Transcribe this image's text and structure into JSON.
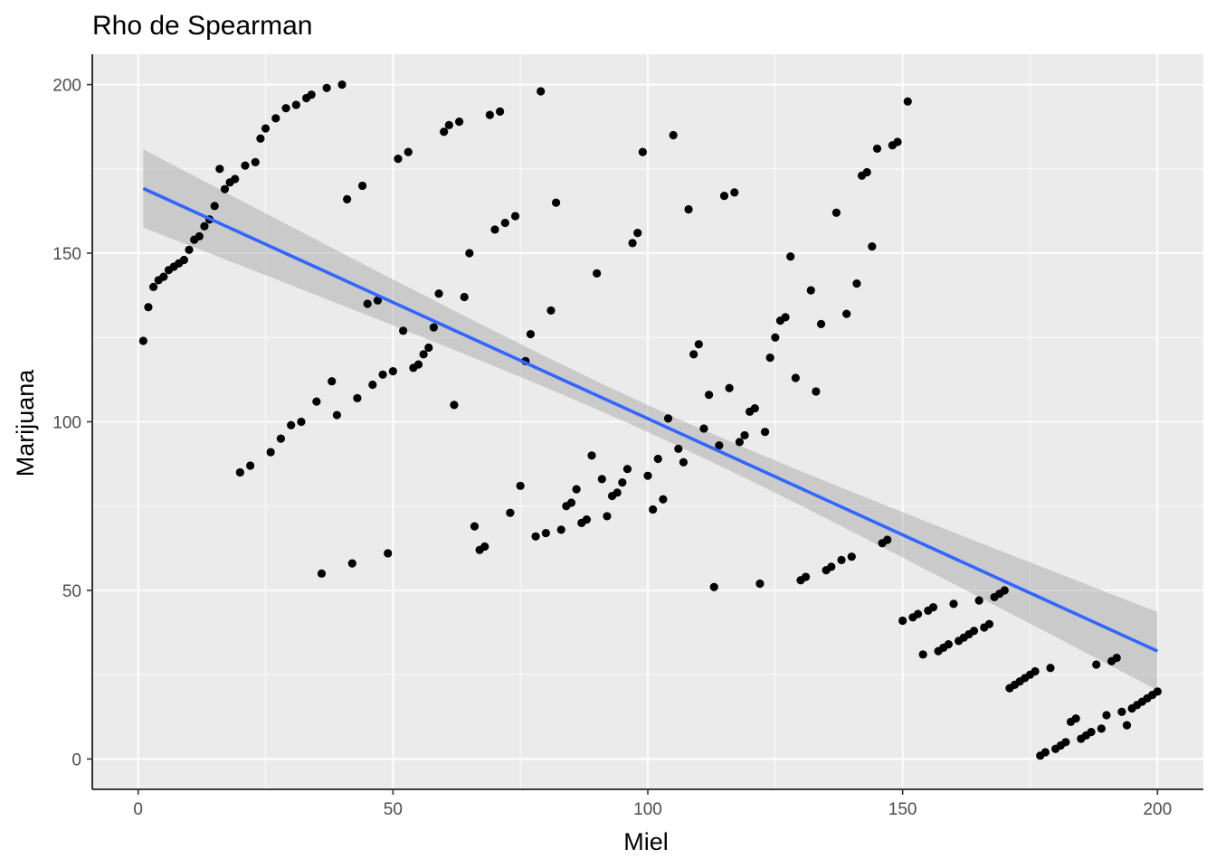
{
  "chart_data": {
    "type": "scatter",
    "title": "Rho de Spearman",
    "xlabel": "Miel",
    "ylabel": "Marijuana",
    "xlim": [
      -9,
      209
    ],
    "ylim": [
      -9,
      209
    ],
    "x_ticks": [
      0,
      50,
      100,
      150,
      200
    ],
    "y_ticks": [
      0,
      50,
      100,
      150,
      200
    ],
    "grid": true,
    "panel_background": "#EBEBEB",
    "grid_color": "#FFFFFF",
    "point_color": "#000000",
    "line_color": "#3366FF",
    "ribbon_color": "#999999",
    "trend": {
      "method": "linear",
      "x_range": [
        1,
        200
      ],
      "y_start": 169.2,
      "y_end": 32.0,
      "ci_start": [
        157.6,
        180.8
      ],
      "ci_end": [
        20.4,
        43.6
      ],
      "ci_mid": [
        96.5,
        104.5
      ]
    },
    "points": [
      [
        1,
        124
      ],
      [
        2,
        134
      ],
      [
        3,
        140
      ],
      [
        4,
        142
      ],
      [
        5,
        143
      ],
      [
        6,
        145
      ],
      [
        7,
        146
      ],
      [
        8,
        147
      ],
      [
        9,
        148
      ],
      [
        10,
        151
      ],
      [
        11,
        154
      ],
      [
        12,
        155
      ],
      [
        13,
        158
      ],
      [
        14,
        160
      ],
      [
        15,
        164
      ],
      [
        16,
        175
      ],
      [
        17,
        169
      ],
      [
        18,
        171
      ],
      [
        19,
        172
      ],
      [
        20,
        85
      ],
      [
        21,
        176
      ],
      [
        22,
        87
      ],
      [
        23,
        177
      ],
      [
        24,
        184
      ],
      [
        25,
        187
      ],
      [
        26,
        91
      ],
      [
        27,
        190
      ],
      [
        28,
        95
      ],
      [
        29,
        193
      ],
      [
        30,
        99
      ],
      [
        31,
        194
      ],
      [
        32,
        100
      ],
      [
        33,
        196
      ],
      [
        34,
        197
      ],
      [
        35,
        106
      ],
      [
        36,
        55
      ],
      [
        37,
        199
      ],
      [
        38,
        112
      ],
      [
        39,
        102
      ],
      [
        40,
        200
      ],
      [
        41,
        166
      ],
      [
        42,
        58
      ],
      [
        43,
        107
      ],
      [
        44,
        170
      ],
      [
        45,
        135
      ],
      [
        46,
        111
      ],
      [
        47,
        136
      ],
      [
        48,
        114
      ],
      [
        49,
        61
      ],
      [
        50,
        115
      ],
      [
        51,
        178
      ],
      [
        52,
        127
      ],
      [
        53,
        180
      ],
      [
        54,
        116
      ],
      [
        55,
        117
      ],
      [
        56,
        120
      ],
      [
        57,
        122
      ],
      [
        58,
        128
      ],
      [
        59,
        138
      ],
      [
        60,
        186
      ],
      [
        61,
        188
      ],
      [
        62,
        105
      ],
      [
        63,
        189
      ],
      [
        64,
        137
      ],
      [
        65,
        150
      ],
      [
        66,
        69
      ],
      [
        67,
        62
      ],
      [
        68,
        63
      ],
      [
        69,
        191
      ],
      [
        70,
        157
      ],
      [
        71,
        192
      ],
      [
        72,
        159
      ],
      [
        73,
        73
      ],
      [
        74,
        161
      ],
      [
        75,
        81
      ],
      [
        76,
        118
      ],
      [
        77,
        126
      ],
      [
        78,
        66
      ],
      [
        79,
        198
      ],
      [
        80,
        67
      ],
      [
        81,
        133
      ],
      [
        82,
        165
      ],
      [
        83,
        68
      ],
      [
        84,
        75
      ],
      [
        85,
        76
      ],
      [
        86,
        80
      ],
      [
        87,
        70
      ],
      [
        88,
        71
      ],
      [
        89,
        90
      ],
      [
        90,
        144
      ],
      [
        91,
        83
      ],
      [
        92,
        72
      ],
      [
        93,
        78
      ],
      [
        94,
        79
      ],
      [
        95,
        82
      ],
      [
        96,
        86
      ],
      [
        97,
        153
      ],
      [
        98,
        156
      ],
      [
        99,
        180
      ],
      [
        100,
        84
      ],
      [
        101,
        74
      ],
      [
        102,
        89
      ],
      [
        103,
        77
      ],
      [
        104,
        101
      ],
      [
        105,
        185
      ],
      [
        106,
        92
      ],
      [
        107,
        88
      ],
      [
        108,
        163
      ],
      [
        109,
        120
      ],
      [
        110,
        123
      ],
      [
        111,
        98
      ],
      [
        112,
        108
      ],
      [
        113,
        51
      ],
      [
        114,
        93
      ],
      [
        115,
        167
      ],
      [
        116,
        110
      ],
      [
        117,
        168
      ],
      [
        118,
        94
      ],
      [
        119,
        96
      ],
      [
        120,
        103
      ],
      [
        121,
        104
      ],
      [
        122,
        52
      ],
      [
        123,
        97
      ],
      [
        124,
        119
      ],
      [
        125,
        125
      ],
      [
        126,
        130
      ],
      [
        127,
        131
      ],
      [
        128,
        149
      ],
      [
        129,
        113
      ],
      [
        130,
        53
      ],
      [
        131,
        54
      ],
      [
        132,
        139
      ],
      [
        133,
        109
      ],
      [
        134,
        129
      ],
      [
        135,
        56
      ],
      [
        136,
        57
      ],
      [
        137,
        162
      ],
      [
        138,
        59
      ],
      [
        139,
        132
      ],
      [
        140,
        60
      ],
      [
        141,
        141
      ],
      [
        142,
        173
      ],
      [
        143,
        174
      ],
      [
        144,
        152
      ],
      [
        145,
        181
      ],
      [
        146,
        64
      ],
      [
        147,
        65
      ],
      [
        148,
        182
      ],
      [
        149,
        183
      ],
      [
        150,
        41
      ],
      [
        151,
        195
      ],
      [
        152,
        42
      ],
      [
        153,
        43
      ],
      [
        154,
        31
      ],
      [
        155,
        44
      ],
      [
        156,
        45
      ],
      [
        157,
        32
      ],
      [
        158,
        33
      ],
      [
        159,
        34
      ],
      [
        160,
        46
      ],
      [
        161,
        35
      ],
      [
        162,
        36
      ],
      [
        163,
        37
      ],
      [
        164,
        38
      ],
      [
        165,
        47
      ],
      [
        166,
        39
      ],
      [
        167,
        40
      ],
      [
        168,
        48
      ],
      [
        169,
        49
      ],
      [
        170,
        50
      ],
      [
        171,
        21
      ],
      [
        172,
        22
      ],
      [
        173,
        23
      ],
      [
        174,
        24
      ],
      [
        175,
        25
      ],
      [
        176,
        26
      ],
      [
        177,
        1
      ],
      [
        178,
        2
      ],
      [
        179,
        27
      ],
      [
        180,
        3
      ],
      [
        181,
        4
      ],
      [
        182,
        5
      ],
      [
        183,
        11
      ],
      [
        184,
        12
      ],
      [
        185,
        6
      ],
      [
        186,
        7
      ],
      [
        187,
        8
      ],
      [
        188,
        28
      ],
      [
        189,
        9
      ],
      [
        190,
        13
      ],
      [
        191,
        29
      ],
      [
        192,
        30
      ],
      [
        193,
        14
      ],
      [
        194,
        10
      ],
      [
        195,
        15
      ],
      [
        196,
        16
      ],
      [
        197,
        17
      ],
      [
        198,
        18
      ],
      [
        199,
        19
      ],
      [
        200,
        20
      ]
    ]
  }
}
